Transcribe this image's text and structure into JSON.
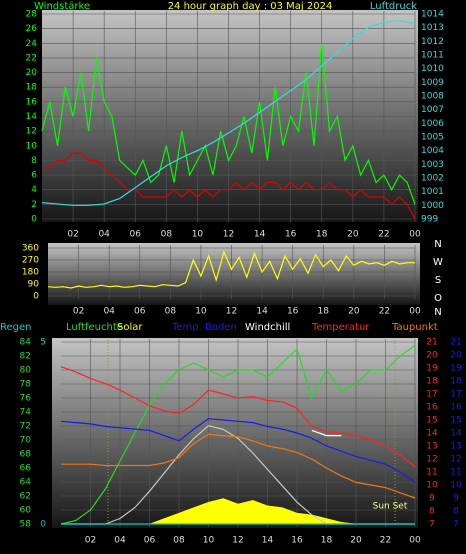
{
  "chart_data": [
    {
      "type": "line",
      "title": "24 hour graph day : 03 Maj 2024",
      "y_label": "Windstärke",
      "y2_label": "Luftdruck",
      "x": [
        0,
        0.5,
        1,
        1.5,
        2,
        2.5,
        3,
        3.5,
        4,
        4.5,
        5,
        5.5,
        6,
        6.5,
        7,
        7.5,
        8,
        8.5,
        9,
        9.5,
        10,
        10.5,
        11,
        11.5,
        12,
        12.5,
        13,
        13.5,
        14,
        14.5,
        15,
        15.5,
        16,
        16.5,
        17,
        17.5,
        18,
        18.5,
        19,
        19.5,
        20,
        20.5,
        21,
        21.5,
        22,
        22.5,
        23,
        23.5,
        24
      ],
      "xlim": [
        0,
        24
      ],
      "xticks": [
        {
          "value": 2,
          "label": "02"
        },
        {
          "value": 4,
          "label": "04"
        },
        {
          "value": 6,
          "label": "06"
        },
        {
          "value": 8,
          "label": "08"
        },
        10,
        12,
        14,
        16,
        18,
        20,
        22,
        {
          "value": 24,
          "label": "00"
        }
      ],
      "ylim": [
        0,
        28
      ],
      "yticks": [
        0,
        2,
        4,
        6,
        8,
        10,
        12,
        14,
        16,
        18,
        20,
        22,
        24,
        26,
        28
      ],
      "y2lim": [
        999,
        1014
      ],
      "y2ticks": [
        999,
        1000,
        1001,
        1002,
        1003,
        1004,
        1005,
        1006,
        1007,
        1008,
        1009,
        1010,
        1011,
        1012,
        1013,
        1014
      ],
      "grid": true,
      "series": [
        {
          "color": "#00ff00",
          "axis": "y",
          "values": [
            12,
            16,
            10,
            18,
            14,
            20,
            12,
            22,
            16,
            14,
            8,
            7,
            6,
            8,
            5,
            6,
            10,
            5,
            12,
            6,
            8,
            10,
            6,
            12,
            8,
            10,
            14,
            9,
            16,
            8,
            18,
            10,
            14,
            12,
            20,
            10,
            24,
            12,
            14,
            8,
            10,
            6,
            8,
            5,
            6,
            4,
            6,
            5,
            2
          ]
        },
        {
          "color": "#e00000",
          "axis": "y",
          "values": [
            7,
            7,
            8,
            8,
            9,
            9,
            8,
            8,
            7,
            6,
            5,
            4,
            4,
            3,
            3,
            3,
            3,
            4,
            3,
            4,
            3,
            4,
            3,
            4,
            4,
            5,
            4,
            5,
            4,
            5,
            5,
            4,
            5,
            4,
            5,
            4,
            4,
            5,
            4,
            4,
            3,
            4,
            3,
            3,
            3,
            2,
            3,
            2,
            0
          ]
        },
        {
          "color": "#33dddd",
          "axis": "y2",
          "values": [
            1000.2,
            1000.15,
            1000.1,
            1000.05,
            1000.0,
            1000.0,
            1000.0,
            1000.05,
            1000.1,
            1000.3,
            1000.5,
            1000.9,
            1001.3,
            1001.7,
            1002.1,
            1002.5,
            1002.9,
            1003.2,
            1003.5,
            1003.75,
            1004.0,
            1004.3,
            1004.6,
            1004.95,
            1005.3,
            1005.65,
            1006.0,
            1006.4,
            1006.8,
            1007.2,
            1007.6,
            1008.0,
            1008.4,
            1008.8,
            1009.2,
            1009.7,
            1010.2,
            1010.7,
            1011.2,
            1011.7,
            1012.2,
            1012.6,
            1013.0,
            1013.2,
            1013.4,
            1013.45,
            1013.5,
            1013.4,
            1013.3
          ]
        }
      ]
    },
    {
      "type": "line",
      "x": [
        0,
        0.5,
        1,
        1.5,
        2,
        2.5,
        3,
        3.5,
        4,
        4.5,
        5,
        5.5,
        6,
        6.5,
        7,
        7.5,
        8,
        8.5,
        9,
        9.5,
        10,
        10.5,
        11,
        11.5,
        12,
        12.5,
        13,
        13.5,
        14,
        14.5,
        15,
        15.5,
        16,
        16.5,
        17,
        17.5,
        18,
        18.5,
        19,
        19.5,
        20,
        20.5,
        21,
        21.5,
        22,
        22.5,
        23,
        23.5,
        24
      ],
      "xlim": [
        0,
        24
      ],
      "xticks": [
        {
          "value": 2,
          "label": "02"
        },
        {
          "value": 4,
          "label": "04"
        },
        {
          "value": 6,
          "label": "06"
        },
        {
          "value": 8,
          "label": "08"
        },
        10,
        12,
        14,
        16,
        18,
        20,
        22,
        {
          "value": 24,
          "label": "00"
        }
      ],
      "ylim": [
        0,
        360
      ],
      "yticks": [
        0,
        90,
        180,
        270,
        360
      ],
      "compass": [
        "N",
        "W",
        "S",
        "O",
        "N"
      ],
      "grid": true,
      "series": [
        {
          "color": "#ffff00",
          "axis": "y",
          "values": [
            70,
            65,
            70,
            60,
            75,
            65,
            70,
            80,
            70,
            75,
            65,
            70,
            80,
            75,
            70,
            85,
            80,
            75,
            100,
            270,
            150,
            300,
            120,
            330,
            200,
            290,
            140,
            320,
            180,
            260,
            130,
            300,
            200,
            280,
            170,
            310,
            220,
            270,
            190,
            300,
            230,
            260,
            240,
            250,
            230,
            260,
            240,
            250,
            250
          ]
        }
      ]
    },
    {
      "type": "line",
      "x": [
        0,
        1,
        2,
        3,
        4,
        5,
        6,
        7,
        8,
        9,
        10,
        11,
        12,
        13,
        14,
        15,
        16,
        17,
        18,
        19,
        20,
        21,
        22,
        23,
        24
      ],
      "xlim": [
        0,
        24
      ],
      "xticks": [
        {
          "value": 2,
          "label": "02"
        },
        {
          "value": 4,
          "label": "04"
        },
        {
          "value": 6,
          "label": "06"
        },
        {
          "value": 8,
          "label": "08"
        },
        10,
        12,
        14,
        16,
        18,
        20,
        22,
        {
          "value": 24,
          "label": "00"
        }
      ],
      "ylim": [
        58,
        84
      ],
      "yticks": [
        58,
        60,
        62,
        64,
        66,
        68,
        70,
        72,
        74,
        76,
        78,
        80,
        82,
        84
      ],
      "y2lim": [
        7,
        21
      ],
      "y2ticks": [
        7,
        8,
        9,
        10,
        11,
        12,
        13,
        14,
        15,
        16,
        17,
        18,
        19,
        20,
        21
      ],
      "y3lim": [
        0,
        5
      ],
      "y3ticks": [
        0,
        5
      ],
      "y4lim": [
        0,
        1000
      ],
      "annotations": [
        "Sun Set"
      ],
      "grid": true,
      "series": [
        {
          "name": "Regen",
          "color": "#00cccc",
          "axis": "y3",
          "values": [
            0,
            0,
            0,
            0,
            0,
            0,
            0,
            0,
            0,
            0,
            0,
            0,
            0,
            0,
            0,
            0,
            0,
            0,
            0,
            0,
            0,
            0,
            0,
            0,
            0
          ]
        },
        {
          "name": "Luftfeuchte",
          "color": "#22dd22",
          "axis": "y",
          "values": [
            58,
            58.5,
            60,
            63,
            67,
            71,
            75,
            78,
            80,
            81,
            80,
            79,
            80,
            80,
            79,
            81,
            83,
            76,
            80,
            77,
            78,
            80,
            80,
            82,
            83.5
          ]
        },
        {
          "name": "Solar",
          "color": "#ffff00",
          "axis": "y4",
          "area": true,
          "values": [
            0,
            0,
            0,
            0,
            0,
            0,
            0,
            30,
            60,
            90,
            120,
            140,
            110,
            130,
            100,
            90,
            60,
            50,
            30,
            10,
            0,
            0,
            0,
            0,
            0
          ]
        },
        {
          "name": "Temp. Boden",
          "color": "#1a1aee",
          "axis": "y2",
          "values": [
            14.9,
            14.8,
            14.7,
            14.5,
            14.4,
            14.3,
            14.2,
            13.8,
            13.4,
            14.3,
            15.1,
            15.0,
            14.9,
            14.8,
            14.5,
            14.3,
            14.0,
            13.6,
            13.0,
            12.6,
            12.2,
            11.9,
            11.6,
            11.0,
            10.2
          ]
        },
        {
          "name": "Windchill",
          "color": "#ffffff",
          "axis": "y2",
          "values": [
            null,
            null,
            null,
            null,
            null,
            null,
            null,
            null,
            null,
            null,
            null,
            null,
            null,
            null,
            null,
            null,
            null,
            14.2,
            13.8,
            13.8,
            null,
            null,
            null,
            null,
            null
          ]
        },
        {
          "name": "Temperatur",
          "color": "#ff2222",
          "axis": "y2",
          "values": [
            19.1,
            18.7,
            18.2,
            17.8,
            17.3,
            16.7,
            16.1,
            15.7,
            15.5,
            16.2,
            17.3,
            17.0,
            16.7,
            16.8,
            16.5,
            16.4,
            15.9,
            14.5,
            14.1,
            14.0,
            13.8,
            13.5,
            13.0,
            12.3,
            11.4
          ]
        },
        {
          "name": "Taupunkt",
          "color": "#ee7711",
          "axis": "y2",
          "values": [
            11.6,
            11.6,
            11.6,
            11.5,
            11.5,
            11.5,
            11.5,
            11.7,
            12.1,
            13.2,
            13.9,
            13.8,
            13.7,
            13.4,
            13.0,
            12.8,
            12.5,
            12.0,
            11.3,
            10.7,
            10.2,
            10.0,
            9.8,
            9.4,
            9.0
          ]
        },
        {
          "color": "#c8c8c8",
          "axis": "y4",
          "values": [
            0,
            0,
            0,
            0,
            30,
            90,
            180,
            280,
            380,
            470,
            540,
            520,
            470,
            390,
            300,
            210,
            120,
            50,
            0,
            0,
            0,
            0,
            0,
            0,
            0
          ]
        }
      ]
    }
  ]
}
